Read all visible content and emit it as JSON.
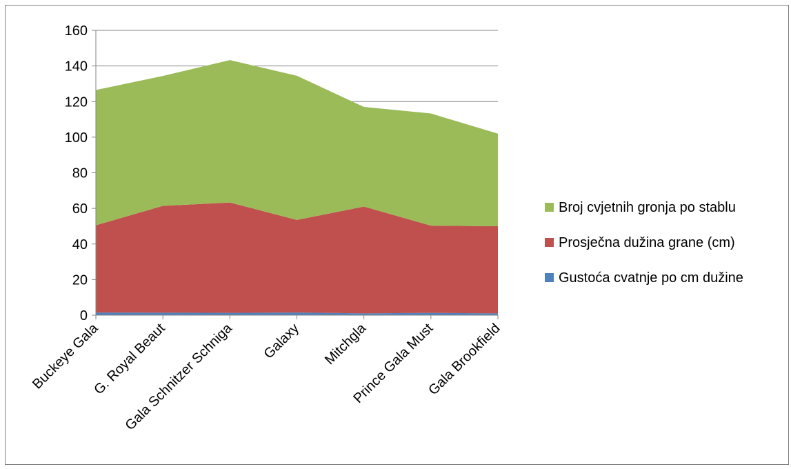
{
  "chart_data": {
    "type": "area",
    "stacked": true,
    "categories": [
      "Buckeye Gala",
      "G. Royal Beaut",
      "Gala Schnitzer Schniga",
      "Galaxy",
      "Mitchgla",
      "Prince Gala Must",
      "Gala Brookfield"
    ],
    "series": [
      {
        "name": "Gustoća cvatnje po cm dužine",
        "color": "#4f81bd",
        "values": [
          1.5,
          1.4,
          1.3,
          1.5,
          1.0,
          1.3,
          1.0
        ]
      },
      {
        "name": "Prosječna dužina grane (cm)",
        "color": "#c0504d",
        "values": [
          49,
          60,
          62,
          52,
          60,
          49,
          49
        ]
      },
      {
        "name": "Broj cvjetnih gronja po stablu",
        "color": "#9bbb59",
        "values": [
          76,
          73,
          80,
          81,
          56,
          63,
          52
        ]
      }
    ],
    "ylim": [
      0,
      160
    ],
    "yticks": [
      0,
      20,
      40,
      60,
      80,
      100,
      120,
      140,
      160
    ],
    "grid": true,
    "legend_position": "right",
    "title": "",
    "xlabel": "",
    "ylabel": ""
  }
}
